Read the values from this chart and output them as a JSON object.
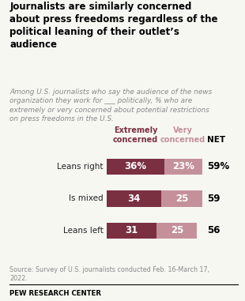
{
  "title": "Journalists are similarly concerned\nabout press freedoms regardless of the\npolitical leaning of their outlet’s\naudience",
  "subtitle": "Among U.S. journalists who say the audience of the news\norganization they work for ___ politically, % who are\nextremely or very concerned about potential restrictions\non press freedoms in the U.S.",
  "categories": [
    "Leans right",
    "Is mixed",
    "Leans left"
  ],
  "extremely_concerned": [
    36,
    34,
    31
  ],
  "very_concerned": [
    23,
    25,
    25
  ],
  "net": [
    "59%",
    "59",
    "56"
  ],
  "color_extremely": "#7a3040",
  "color_very": "#c4919a",
  "col_header_extremely": "Extremely\nconcerned",
  "col_header_very": "Very\nconcerned",
  "col_header_net": "NET",
  "source": "Source: Survey of U.S. journalists conducted Feb. 16-March 17,\n2022.",
  "footer": "PEW RESEARCH CENTER",
  "bg_color": "#f7f7f2",
  "bar_label_color": "#ffffff",
  "net_color": "#000000",
  "title_color": "#000000",
  "subtitle_color": "#888888",
  "header_extremely_color": "#7a3040",
  "header_very_color": "#c4919a"
}
